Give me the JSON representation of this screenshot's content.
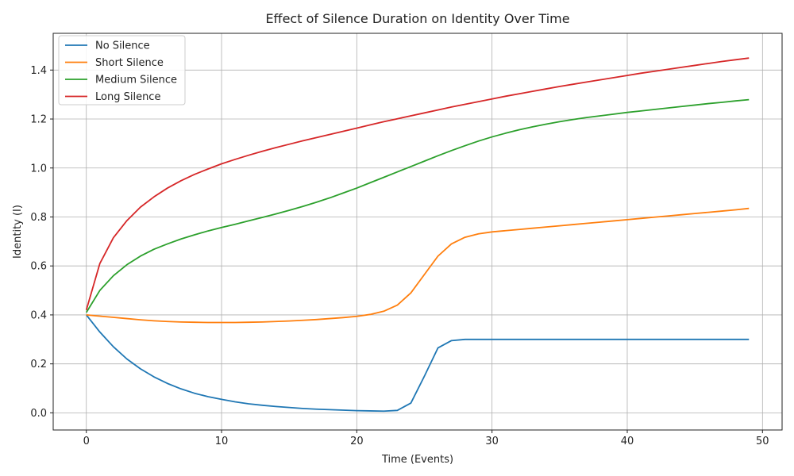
{
  "chart_data": {
    "type": "line",
    "title": "Effect of Silence Duration on Identity Over Time",
    "xlabel": "Time (Events)",
    "ylabel": "Identity (I)",
    "xlim": [
      -2.45,
      51.45
    ],
    "ylim": [
      -0.07,
      1.55
    ],
    "xticks": [
      0,
      10,
      20,
      30,
      40,
      50
    ],
    "yticks": [
      0.0,
      0.2,
      0.4,
      0.6,
      0.8,
      1.0,
      1.2,
      1.4
    ],
    "grid": true,
    "legend_position": "top-left",
    "x": [
      0,
      1,
      2,
      3,
      4,
      5,
      6,
      7,
      8,
      9,
      10,
      11,
      12,
      13,
      14,
      15,
      16,
      17,
      18,
      19,
      20,
      21,
      22,
      23,
      24,
      25,
      26,
      27,
      28,
      29,
      30,
      31,
      32,
      33,
      34,
      35,
      36,
      37,
      38,
      39,
      40,
      41,
      42,
      43,
      44,
      45,
      46,
      47,
      48,
      49
    ],
    "series": [
      {
        "name": "No Silence",
        "color": "#1f77b4",
        "values": [
          0.4,
          0.33,
          0.27,
          0.22,
          0.18,
          0.147,
          0.12,
          0.098,
          0.08,
          0.066,
          0.055,
          0.045,
          0.037,
          0.031,
          0.026,
          0.022,
          0.018,
          0.015,
          0.013,
          0.011,
          0.009,
          0.008,
          0.007,
          0.01,
          0.04,
          0.15,
          0.265,
          0.295,
          0.3,
          0.3,
          0.3,
          0.3,
          0.3,
          0.3,
          0.3,
          0.3,
          0.3,
          0.3,
          0.3,
          0.3,
          0.3,
          0.3,
          0.3,
          0.3,
          0.3,
          0.3,
          0.3,
          0.3,
          0.3,
          0.3
        ]
      },
      {
        "name": "Short Silence",
        "color": "#ff7f0e",
        "values": [
          0.4,
          0.395,
          0.39,
          0.385,
          0.38,
          0.376,
          0.373,
          0.371,
          0.37,
          0.369,
          0.369,
          0.369,
          0.37,
          0.371,
          0.373,
          0.375,
          0.378,
          0.381,
          0.385,
          0.389,
          0.394,
          0.402,
          0.415,
          0.44,
          0.49,
          0.565,
          0.64,
          0.69,
          0.717,
          0.731,
          0.739,
          0.744,
          0.749,
          0.754,
          0.759,
          0.764,
          0.769,
          0.774,
          0.779,
          0.784,
          0.789,
          0.794,
          0.799,
          0.804,
          0.809,
          0.814,
          0.819,
          0.824,
          0.829,
          0.835
        ]
      },
      {
        "name": "Medium Silence",
        "color": "#2ca02c",
        "values": [
          0.41,
          0.5,
          0.56,
          0.605,
          0.64,
          0.668,
          0.69,
          0.71,
          0.727,
          0.743,
          0.757,
          0.77,
          0.784,
          0.798,
          0.812,
          0.827,
          0.843,
          0.86,
          0.878,
          0.898,
          0.918,
          0.94,
          0.962,
          0.984,
          1.006,
          1.028,
          1.05,
          1.071,
          1.091,
          1.11,
          1.127,
          1.142,
          1.156,
          1.168,
          1.179,
          1.189,
          1.198,
          1.206,
          1.213,
          1.22,
          1.227,
          1.233,
          1.239,
          1.245,
          1.251,
          1.257,
          1.263,
          1.268,
          1.274,
          1.279
        ]
      },
      {
        "name": "Long Silence",
        "color": "#d62728",
        "values": [
          0.42,
          0.61,
          0.715,
          0.785,
          0.84,
          0.882,
          0.918,
          0.948,
          0.974,
          0.996,
          1.017,
          1.035,
          1.052,
          1.068,
          1.083,
          1.097,
          1.111,
          1.124,
          1.137,
          1.15,
          1.163,
          1.176,
          1.189,
          1.201,
          1.213,
          1.225,
          1.237,
          1.249,
          1.26,
          1.271,
          1.282,
          1.293,
          1.303,
          1.313,
          1.323,
          1.333,
          1.342,
          1.351,
          1.36,
          1.369,
          1.378,
          1.387,
          1.395,
          1.403,
          1.411,
          1.419,
          1.427,
          1.435,
          1.442,
          1.449
        ]
      }
    ]
  }
}
